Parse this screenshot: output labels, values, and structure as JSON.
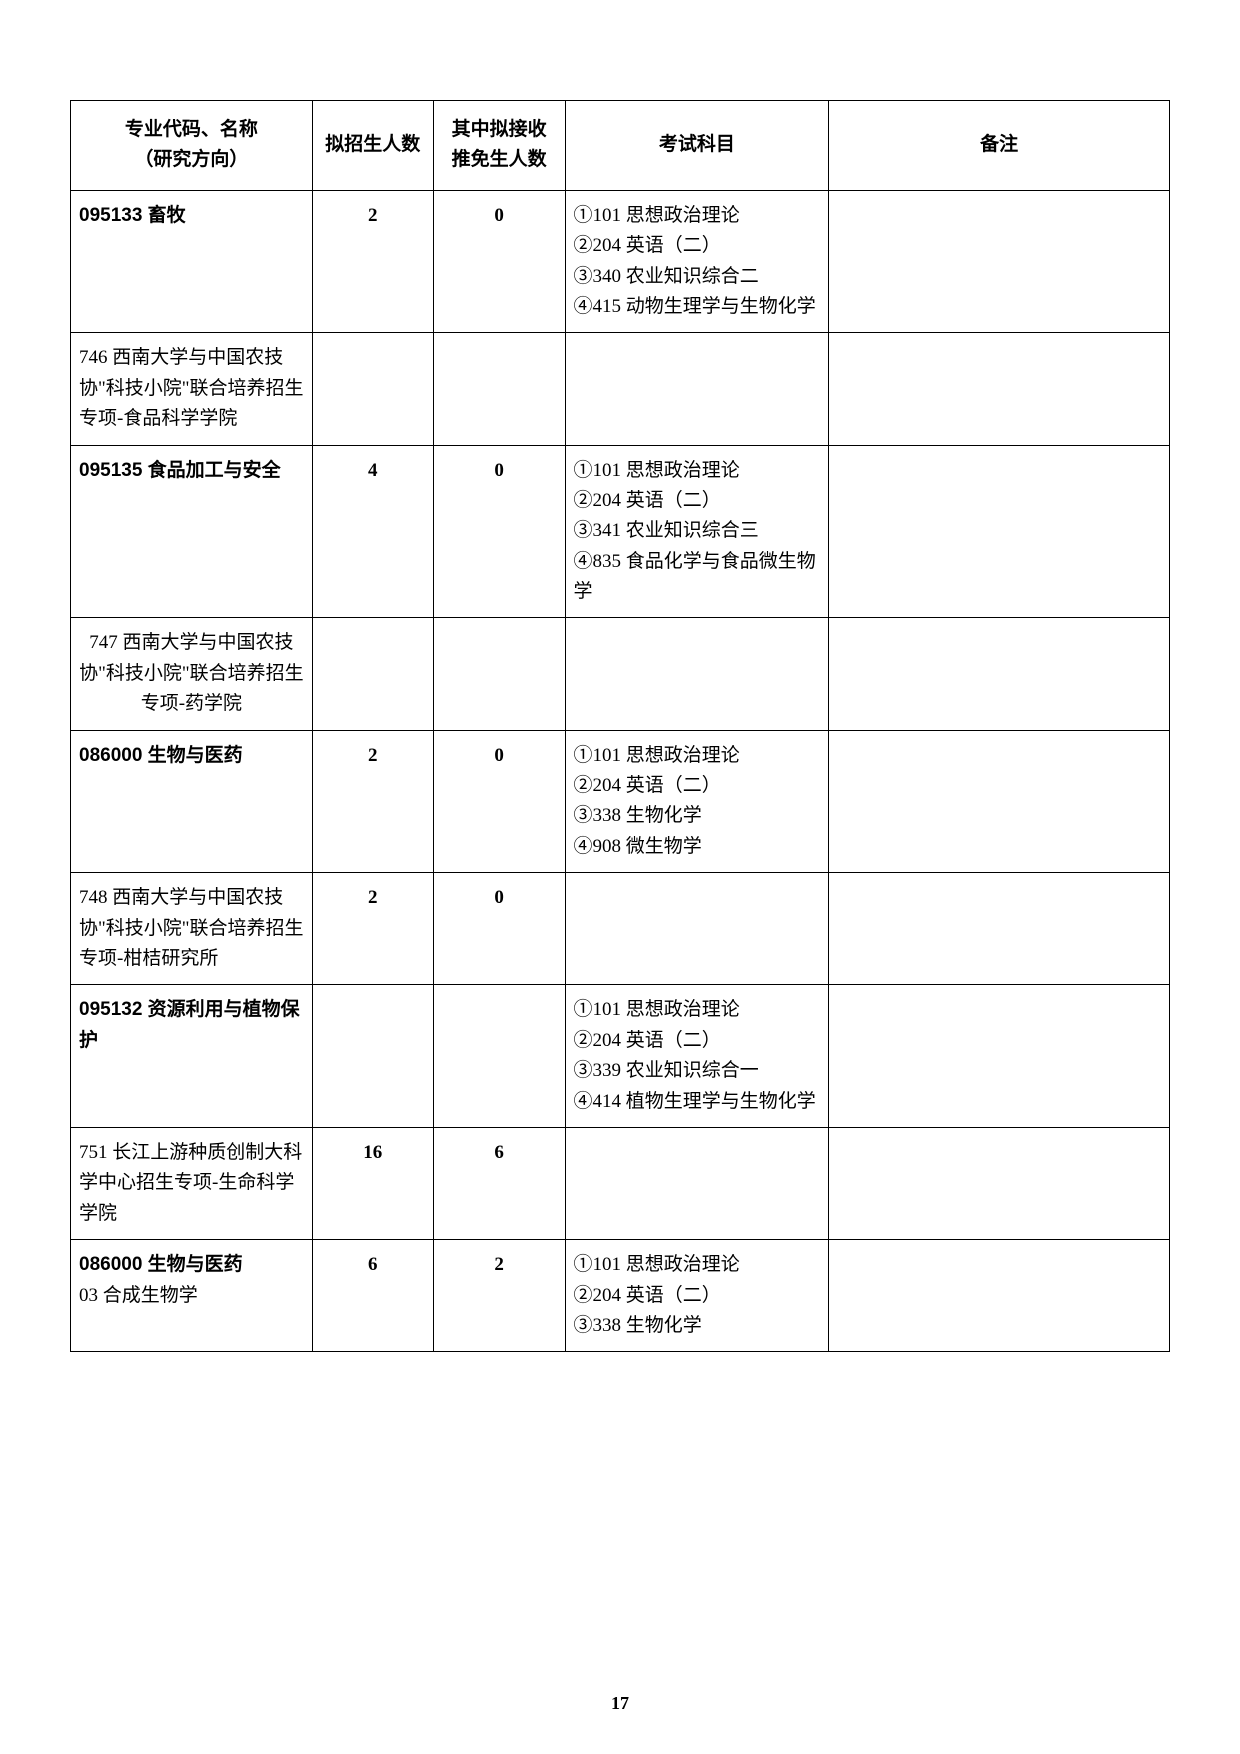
{
  "headers": {
    "c1": "专业代码、名称\n（研究方向）",
    "c2": "拟招生人数",
    "c3": "其中拟接收\n推免生人数",
    "c4": "考试科目",
    "c5": "备注"
  },
  "rows": [
    {
      "c1_code": "095133",
      "c1_name": "畜牧",
      "c2": "2",
      "c3": "0",
      "c4": "①101 思想政治理论\n②204 英语（二）\n③340  农业知识综合二\n④415  动物生理学与生物化学",
      "c5": "",
      "bold_row": true
    },
    {
      "c1_text": "746 西南大学与中国农技协\"科技小院\"联合培养招生专项-食品科学学院",
      "c2": "",
      "c3": "",
      "c4": "",
      "c5": "",
      "section": true
    },
    {
      "c1_code": "095135",
      "c1_name": "食品加工与安全",
      "c2": "4",
      "c3": "0",
      "c4": "①101 思想政治理论\n②204 英语（二）\n③341  农业知识综合三\n④835  食品化学与食品微生物学",
      "c5": "",
      "bold_row": true
    },
    {
      "c1_text": "747 西南大学与中国农技协\"科技小院\"联合培养招生专项-药学院",
      "c2": "",
      "c3": "",
      "c4": "",
      "c5": "",
      "section": true,
      "center_c1": true
    },
    {
      "c1_code": "086000",
      "c1_name": "生物与医药",
      "c2": "2",
      "c3": "0",
      "c4": "①101 思想政治理论\n②204 英语（二）\n③338 生物化学\n④908 微生物学",
      "c5": "",
      "bold_row": true
    },
    {
      "c1_text": "748 西南大学与中国农技协\"科技小院\"联合培养招生专项-柑桔研究所",
      "c2": "2",
      "c3": "0",
      "c4": "",
      "c5": "",
      "section": true,
      "bold_nums": true
    },
    {
      "c1_code": "095132",
      "c1_name": " 资源利用与植物保护",
      "c2": "",
      "c3": "",
      "c4": "①101 思想政治理论\n②204 英语（二）\n③339  农业知识综合一\n④414  植物生理学与生物化学",
      "c5": "",
      "bold_row": true
    },
    {
      "c1_text": "751 长江上游种质创制大科学中心招生专项-生命科学学院",
      "c2": "16",
      "c3": "6",
      "c4": "",
      "c5": "",
      "section": true,
      "bold_nums": true
    },
    {
      "c1_code": "086000",
      "c1_name": "生物与医药",
      "c1_sub": "03 合成生物学",
      "c2": "6",
      "c3": "2",
      "c4": "①101 思想政治理论\n②204 英语（二）\n③338 生物化学",
      "c5": "",
      "bold_row": true
    }
  ],
  "page_number": "17"
}
